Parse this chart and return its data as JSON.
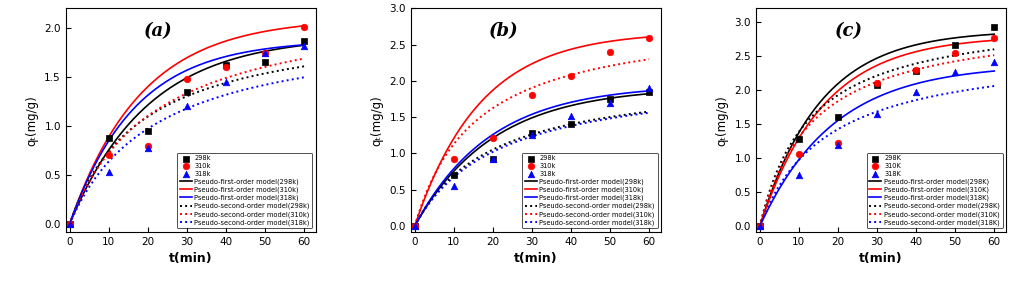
{
  "panels": [
    {
      "label": "(a)",
      "ylabel": "qₜ(mg/g)",
      "ylim": [
        -0.08,
        2.2
      ],
      "yticks": [
        0.0,
        0.5,
        1.0,
        1.5,
        2.0
      ],
      "temp_labels": [
        "298k",
        "310k",
        "318k"
      ],
      "pfo_labels": [
        "Pseudo-first-order model(298k)",
        "Pseudo-first-order model(310k)",
        "Pseudo-first-order model(318k)"
      ],
      "pso_labels": [
        "Pseudo-second-order model(298k)",
        "Pseudo-second-order model(310k)",
        "Pseudo-second-order model(318k)"
      ],
      "data_t": [
        0,
        10,
        20,
        30,
        40,
        50,
        60
      ],
      "data_298": [
        0.0,
        0.88,
        0.95,
        1.35,
        1.62,
        1.65,
        1.87
      ],
      "data_310": [
        0.0,
        0.7,
        0.8,
        1.48,
        1.6,
        1.75,
        2.01
      ],
      "data_318": [
        0.0,
        0.53,
        0.78,
        1.2,
        1.45,
        1.75,
        1.82
      ],
      "pfo_298": {
        "qe": 1.92,
        "k1": 0.05
      },
      "pfo_310": {
        "qe": 2.1,
        "k1": 0.055
      },
      "pfo_318": {
        "qe": 1.88,
        "k1": 0.06
      },
      "pso_298": {
        "qe": 2.1,
        "k2": 0.026
      },
      "pso_310": {
        "qe": 2.3,
        "k2": 0.02
      },
      "pso_318": {
        "qe": 2.05,
        "k2": 0.022
      }
    },
    {
      "label": "(b)",
      "ylabel": "qₜ(mg/g)",
      "ylim": [
        -0.08,
        3.0
      ],
      "yticks": [
        0.0,
        0.5,
        1.0,
        1.5,
        2.0,
        2.5,
        3.0
      ],
      "temp_labels": [
        "298k",
        "310k",
        "318k"
      ],
      "pfo_labels": [
        "Pseudo-first-order model(298k)",
        "Pseudo-first-order model(310k)",
        "Pseudo-first-order model(318k)"
      ],
      "pso_labels": [
        "Pseudo-second-order model(298k)",
        "Pseudo-second-order model(310k)",
        "Pseudo-second-order model(318k)"
      ],
      "data_t": [
        0,
        10,
        20,
        30,
        40,
        50,
        60
      ],
      "data_298": [
        0.0,
        0.7,
        0.92,
        1.28,
        1.4,
        1.75,
        1.85
      ],
      "data_310": [
        0.0,
        0.92,
        1.22,
        1.8,
        2.07,
        2.4,
        2.59
      ],
      "data_318": [
        0.0,
        0.55,
        0.93,
        1.25,
        1.52,
        1.7,
        1.9
      ],
      "pfo_298": {
        "qe": 1.92,
        "k1": 0.05
      },
      "pfo_310": {
        "qe": 2.68,
        "k1": 0.06
      },
      "pfo_318": {
        "qe": 1.95,
        "k1": 0.052
      },
      "pso_298": {
        "qe": 2.1,
        "k2": 0.024
      },
      "pso_310": {
        "qe": 2.9,
        "k2": 0.022
      },
      "pso_318": {
        "qe": 2.12,
        "k2": 0.022
      }
    },
    {
      "label": "(c)",
      "ylabel": "qₜ(mg/g)",
      "ylim": [
        -0.08,
        3.2
      ],
      "yticks": [
        0.0,
        0.5,
        1.0,
        1.5,
        2.0,
        2.5,
        3.0
      ],
      "temp_labels": [
        "298K",
        "310K",
        "318K"
      ],
      "pfo_labels": [
        "Pseudo-first-order model(298K)",
        "Pseudo-first-order model(310K)",
        "Pseudo-first-order model(318K)"
      ],
      "pso_labels": [
        "Pseudo-second-order model(298K)",
        "Pseudo-second-order model(310K)",
        "Pseudo-second-order model(318K)"
      ],
      "data_t": [
        0,
        10,
        20,
        30,
        40,
        50,
        60
      ],
      "data_298": [
        0.0,
        1.28,
        1.6,
        2.08,
        2.28,
        2.67,
        2.93
      ],
      "data_310": [
        0.0,
        1.07,
        1.23,
        2.1,
        2.3,
        2.55,
        2.76
      ],
      "data_318": [
        0.0,
        0.75,
        1.2,
        1.65,
        1.97,
        2.27,
        2.42
      ],
      "pfo_298": {
        "qe": 2.88,
        "k1": 0.065
      },
      "pfo_310": {
        "qe": 2.8,
        "k1": 0.062
      },
      "pfo_318": {
        "qe": 2.38,
        "k1": 0.053
      },
      "pso_298": {
        "qe": 3.15,
        "k2": 0.025
      },
      "pso_310": {
        "qe": 3.08,
        "k2": 0.024
      },
      "pso_318": {
        "qe": 2.65,
        "k2": 0.022
      }
    }
  ],
  "colors": [
    "black",
    "red",
    "blue"
  ],
  "markers": [
    "s",
    "o",
    "^"
  ],
  "xlabel": "t(min)",
  "xlim": [
    -1,
    63
  ],
  "xticks": [
    0,
    10,
    20,
    30,
    40,
    50,
    60
  ]
}
